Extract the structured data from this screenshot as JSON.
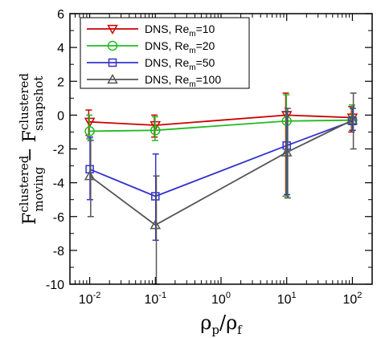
{
  "chart_data": {
    "type": "line",
    "xscale": "log",
    "x": [
      0.01,
      0.1,
      10,
      100
    ],
    "xlim": [
      0.005,
      200
    ],
    "ylim": [
      -10,
      6
    ],
    "xticks": [
      0.01,
      0.1,
      1,
      10,
      100
    ],
    "xtick_labels": [
      {
        "base": "10",
        "exp": "-2"
      },
      {
        "base": "10",
        "exp": "-1"
      },
      {
        "base": "10",
        "exp": "0"
      },
      {
        "base": "10",
        "exp": "1"
      },
      {
        "base": "10",
        "exp": "2"
      }
    ],
    "yticks": [
      -10,
      -8,
      -6,
      -4,
      -2,
      0,
      2,
      4,
      6
    ],
    "ytick_labels": [
      "-10",
      "-8",
      "-6",
      "-4",
      "-2",
      "0",
      "2",
      "4",
      "6"
    ],
    "xlabel": {
      "a": "ρ",
      "a_sub": "p",
      "sep": "/",
      "b": "ρ",
      "b_sub": "f"
    },
    "ylabel": {
      "F": "F",
      "sup1": "clustered",
      "sub1": "moving",
      "minus": "−",
      "F2": "F",
      "sup2": "clustered",
      "sub2": "snapshot"
    },
    "grid": false,
    "legend_position": "top-left",
    "series": [
      {
        "name": "DNS, Re_m=10",
        "label_main": "DNS, Re",
        "label_sub": "m",
        "label_tail": "=10",
        "color": "#cc0000",
        "marker": "triangle-down",
        "values": [
          -0.4,
          -0.6,
          0.0,
          -0.15
        ],
        "err_low": [
          -1.2,
          -1.3,
          -4.8,
          -1.0
        ],
        "err_high": [
          0.3,
          0.0,
          1.3,
          0.5
        ]
      },
      {
        "name": "DNS, Re_m=20",
        "label_main": "DNS, Re",
        "label_sub": "m",
        "label_tail": "=20",
        "color": "#22bb22",
        "marker": "circle",
        "values": [
          -0.95,
          -0.9,
          -0.35,
          -0.3
        ],
        "err_low": [
          -1.4,
          -1.5,
          -4.8,
          -0.9
        ],
        "err_high": [
          0.0,
          -0.1,
          1.2,
          0.6
        ]
      },
      {
        "name": "DNS, Re_m=50",
        "label_main": "DNS, Re",
        "label_sub": "m",
        "label_tail": "=50",
        "color": "#3333cc",
        "marker": "square",
        "values": [
          -3.2,
          -4.8,
          -1.8,
          -0.35
        ],
        "err_low": [
          -5.0,
          -7.4,
          -4.7,
          -0.9
        ],
        "err_high": [
          -1.3,
          -2.3,
          0.2,
          0.4
        ]
      },
      {
        "name": "DNS, Re_m=100",
        "label_main": "DNS, Re",
        "label_sub": "m",
        "label_tail": "=100",
        "color": "#555555",
        "marker": "triangle-up",
        "values": [
          -3.6,
          -6.5,
          -2.2,
          -0.3
        ],
        "err_low": [
          -6.0,
          -10.0,
          -4.9,
          -2.0
        ],
        "err_high": [
          -1.5,
          -3.6,
          0.4,
          1.3
        ]
      }
    ]
  }
}
